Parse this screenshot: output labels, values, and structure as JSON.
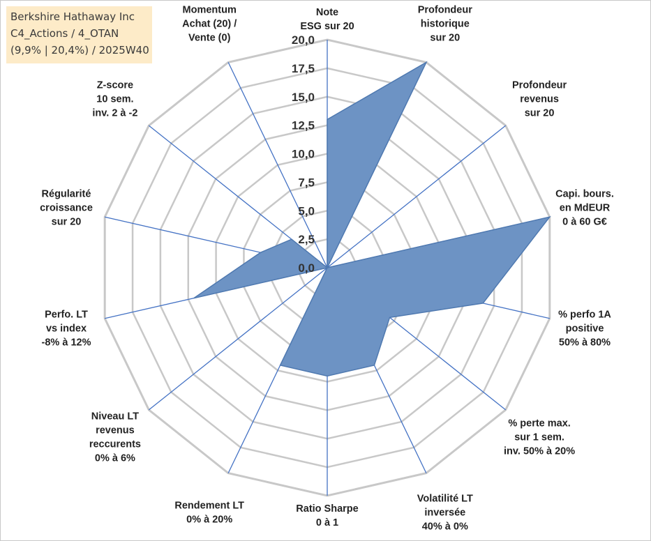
{
  "chart_data": {
    "type": "radar",
    "title_lines": [
      "Berkshire Hathaway Inc",
      "C4_Actions / 4_OTAN",
      "(9,9% | 20,4%) / 2025W40"
    ],
    "scale": {
      "min": 0,
      "max": 20,
      "step": 2.5
    },
    "tick_labels": [
      "0,0",
      "2,5",
      "5,0",
      "7,5",
      "10,0",
      "12,5",
      "15,0",
      "17,5",
      "20,0"
    ],
    "axes": [
      {
        "label": [
          "Note",
          "ESG sur 20"
        ],
        "value": 13.0
      },
      {
        "label": [
          "Profondeur",
          "historique",
          "sur 20"
        ],
        "value": 20.0
      },
      {
        "label": [
          "Profondeur",
          "revenus",
          "sur 20"
        ],
        "value": 0
      },
      {
        "label": [
          "Capi. bours.",
          "en MdEUR",
          "0 à 60 G€"
        ],
        "value": 20.0
      },
      {
        "label": [
          "% perfo 1A",
          "positive",
          "50% à 80%"
        ],
        "value": 14.0
      },
      {
        "label": [
          "% perte max.",
          "sur 1 sem.",
          "inv. 50% à 20%"
        ],
        "value": 7.0
      },
      {
        "label": [
          "Volatilité LT",
          "inversée",
          "40% à 0%"
        ],
        "value": 9.5
      },
      {
        "label": [
          "Ratio Sharpe",
          "0 à 1"
        ],
        "value": 9.5
      },
      {
        "label": [
          "Rendement LT",
          "0% à 20%"
        ],
        "value": 9.5
      },
      {
        "label": [
          "Niveau LT",
          "revenus",
          "reccurents",
          "0% à 6%"
        ],
        "value": 0
      },
      {
        "label": [
          "Perfo. LT",
          "vs index",
          "-8% à 12%"
        ],
        "value": 12.0
      },
      {
        "label": [
          "Régularité",
          "croissance",
          "sur 20"
        ],
        "value": 6.0
      },
      {
        "label": [
          "Z-score",
          "10 sem.",
          "inv. 2 à -2"
        ],
        "value": 4.0
      },
      {
        "label": [
          "Momentum",
          "Achat (20) /",
          "Vente (0)"
        ],
        "value": 0
      }
    ],
    "series_name": "Berkshire Hathaway Inc",
    "colors": {
      "fill": "#6d93c4",
      "stroke": "#4f79b0",
      "grid": "#c8c8c8",
      "axis": "#4472c4"
    }
  }
}
